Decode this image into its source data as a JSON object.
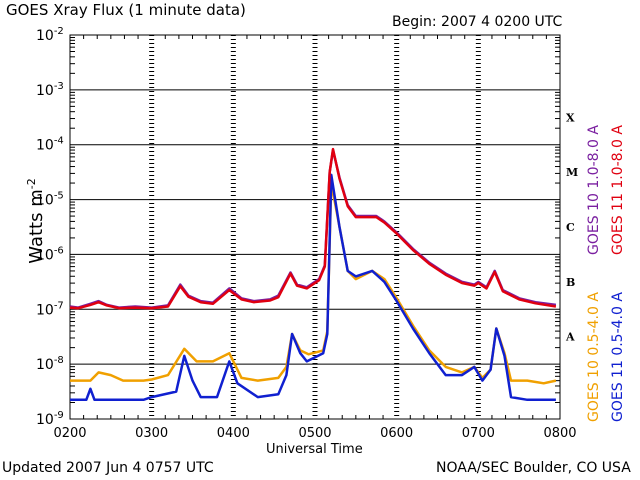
{
  "header": {
    "title": "GOES Xray Flux (1 minute data)",
    "begin": "Begin: 2007  4 0200 UTC"
  },
  "footer": {
    "updated": "Updated 2007 Jun  4 0757 UTC",
    "credit": "NOAA/SEC Boulder, CO USA"
  },
  "colors": {
    "goes10_long": "#7a1fa0",
    "goes11_long": "#e00010",
    "goes10_short": "#f0a000",
    "goes11_short": "#1020d0"
  },
  "chart_data": {
    "type": "line",
    "xlabel": "Universal Time",
    "ylabel_text": "Watts m",
    "ylabel_sup": "-2",
    "x_ticks": [
      "0200",
      "0300",
      "0400",
      "0500",
      "0600",
      "0700",
      "0800"
    ],
    "xlim": [
      2.0,
      8.0
    ],
    "ylim_exp": [
      -9,
      -2
    ],
    "y_scale": "log",
    "y_ticks": [
      {
        "exp": -2,
        "base": "10",
        "sup": "-2"
      },
      {
        "exp": -3,
        "base": "10",
        "sup": "-3"
      },
      {
        "exp": -4,
        "base": "10",
        "sup": "-4"
      },
      {
        "exp": -5,
        "base": "10",
        "sup": "-5"
      },
      {
        "exp": -6,
        "base": "10",
        "sup": "-6"
      },
      {
        "exp": -7,
        "base": "10",
        "sup": "-7"
      },
      {
        "exp": -8,
        "base": "10",
        "sup": "-8"
      },
      {
        "exp": -9,
        "base": "10",
        "sup": "-9"
      }
    ],
    "flare_classes": [
      {
        "label": "X",
        "exp": -3.5
      },
      {
        "label": "M",
        "exp": -4.5
      },
      {
        "label": "C",
        "exp": -5.5
      },
      {
        "label": "B",
        "exp": -6.5
      },
      {
        "label": "A",
        "exp": -7.5
      }
    ],
    "series": [
      {
        "name": "GOES 10 1.0-8.0 A",
        "color_key": "goes10_long",
        "points": [
          [
            2.0,
            -6.95
          ],
          [
            2.1,
            -6.97
          ],
          [
            2.25,
            -6.9
          ],
          [
            2.35,
            -6.85
          ],
          [
            2.45,
            -6.92
          ],
          [
            2.6,
            -6.97
          ],
          [
            2.8,
            -6.95
          ],
          [
            3.0,
            -6.97
          ],
          [
            3.2,
            -6.93
          ],
          [
            3.35,
            -6.55
          ],
          [
            3.45,
            -6.75
          ],
          [
            3.6,
            -6.85
          ],
          [
            3.75,
            -6.88
          ],
          [
            3.95,
            -6.62
          ],
          [
            4.1,
            -6.8
          ],
          [
            4.25,
            -6.85
          ],
          [
            4.45,
            -6.82
          ],
          [
            4.55,
            -6.75
          ],
          [
            4.7,
            -6.33
          ],
          [
            4.78,
            -6.55
          ],
          [
            4.9,
            -6.6
          ],
          [
            5.05,
            -6.45
          ],
          [
            5.12,
            -6.2
          ],
          [
            5.18,
            -4.5
          ],
          [
            5.22,
            -4.1
          ],
          [
            5.3,
            -4.6
          ],
          [
            5.4,
            -5.1
          ],
          [
            5.5,
            -5.3
          ],
          [
            5.6,
            -5.3
          ],
          [
            5.75,
            -5.3
          ],
          [
            5.85,
            -5.4
          ],
          [
            6.0,
            -5.6
          ],
          [
            6.2,
            -5.9
          ],
          [
            6.4,
            -6.15
          ],
          [
            6.6,
            -6.35
          ],
          [
            6.8,
            -6.5
          ],
          [
            6.95,
            -6.55
          ],
          [
            7.0,
            -6.5
          ],
          [
            7.1,
            -6.6
          ],
          [
            7.2,
            -6.3
          ],
          [
            7.3,
            -6.65
          ],
          [
            7.5,
            -6.8
          ],
          [
            7.7,
            -6.87
          ],
          [
            7.95,
            -6.92
          ]
        ]
      },
      {
        "name": "GOES 11 1.0-8.0 A",
        "color_key": "goes11_long",
        "points": [
          [
            2.0,
            -6.97
          ],
          [
            2.1,
            -6.98
          ],
          [
            2.25,
            -6.92
          ],
          [
            2.35,
            -6.87
          ],
          [
            2.45,
            -6.93
          ],
          [
            2.6,
            -6.98
          ],
          [
            2.8,
            -6.97
          ],
          [
            3.0,
            -6.98
          ],
          [
            3.2,
            -6.95
          ],
          [
            3.35,
            -6.58
          ],
          [
            3.45,
            -6.77
          ],
          [
            3.6,
            -6.87
          ],
          [
            3.75,
            -6.9
          ],
          [
            3.95,
            -6.65
          ],
          [
            4.1,
            -6.82
          ],
          [
            4.25,
            -6.87
          ],
          [
            4.45,
            -6.84
          ],
          [
            4.55,
            -6.78
          ],
          [
            4.7,
            -6.35
          ],
          [
            4.78,
            -6.57
          ],
          [
            4.9,
            -6.62
          ],
          [
            5.05,
            -6.47
          ],
          [
            5.12,
            -6.22
          ],
          [
            5.18,
            -4.5
          ],
          [
            5.22,
            -4.08
          ],
          [
            5.3,
            -4.62
          ],
          [
            5.4,
            -5.12
          ],
          [
            5.5,
            -5.32
          ],
          [
            5.6,
            -5.32
          ],
          [
            5.75,
            -5.32
          ],
          [
            5.85,
            -5.42
          ],
          [
            6.0,
            -5.62
          ],
          [
            6.2,
            -5.92
          ],
          [
            6.4,
            -6.17
          ],
          [
            6.6,
            -6.37
          ],
          [
            6.8,
            -6.52
          ],
          [
            6.95,
            -6.57
          ],
          [
            7.0,
            -6.52
          ],
          [
            7.1,
            -6.62
          ],
          [
            7.2,
            -6.32
          ],
          [
            7.3,
            -6.67
          ],
          [
            7.5,
            -6.82
          ],
          [
            7.7,
            -6.89
          ],
          [
            7.95,
            -6.95
          ]
        ]
      },
      {
        "name": "GOES 10 0.5-4.0 A",
        "color_key": "goes10_short",
        "points": [
          [
            2.0,
            -8.3
          ],
          [
            2.25,
            -8.3
          ],
          [
            2.35,
            -8.15
          ],
          [
            2.5,
            -8.2
          ],
          [
            2.65,
            -8.3
          ],
          [
            2.9,
            -8.3
          ],
          [
            3.0,
            -8.28
          ],
          [
            3.2,
            -8.2
          ],
          [
            3.4,
            -7.72
          ],
          [
            3.55,
            -7.95
          ],
          [
            3.75,
            -7.95
          ],
          [
            3.95,
            -7.8
          ],
          [
            4.1,
            -8.25
          ],
          [
            4.3,
            -8.3
          ],
          [
            4.55,
            -8.25
          ],
          [
            4.65,
            -8.05
          ],
          [
            4.72,
            -7.45
          ],
          [
            4.82,
            -7.75
          ],
          [
            4.92,
            -7.82
          ],
          [
            5.1,
            -7.75
          ],
          [
            5.15,
            -7.4
          ],
          [
            5.2,
            -4.7
          ],
          [
            5.3,
            -5.5
          ],
          [
            5.4,
            -6.3
          ],
          [
            5.5,
            -6.45
          ],
          [
            5.7,
            -6.3
          ],
          [
            5.85,
            -6.45
          ],
          [
            6.0,
            -6.8
          ],
          [
            6.2,
            -7.3
          ],
          [
            6.4,
            -7.75
          ],
          [
            6.6,
            -8.05
          ],
          [
            6.8,
            -8.15
          ],
          [
            6.95,
            -8.05
          ],
          [
            7.05,
            -8.25
          ],
          [
            7.15,
            -8.1
          ],
          [
            7.22,
            -7.35
          ],
          [
            7.32,
            -7.8
          ],
          [
            7.4,
            -8.3
          ],
          [
            7.6,
            -8.3
          ],
          [
            7.8,
            -8.35
          ],
          [
            7.95,
            -8.3
          ]
        ]
      },
      {
        "name": "GOES 11 0.5-4.0 A",
        "color_key": "goes11_short",
        "points": [
          [
            2.0,
            -8.65
          ],
          [
            2.2,
            -8.65
          ],
          [
            2.25,
            -8.45
          ],
          [
            2.3,
            -8.65
          ],
          [
            2.6,
            -8.65
          ],
          [
            2.9,
            -8.65
          ],
          [
            3.0,
            -8.6
          ],
          [
            3.3,
            -8.5
          ],
          [
            3.4,
            -7.85
          ],
          [
            3.5,
            -8.3
          ],
          [
            3.6,
            -8.6
          ],
          [
            3.8,
            -8.6
          ],
          [
            3.95,
            -7.95
          ],
          [
            4.05,
            -8.35
          ],
          [
            4.3,
            -8.6
          ],
          [
            4.55,
            -8.55
          ],
          [
            4.65,
            -8.2
          ],
          [
            4.72,
            -7.45
          ],
          [
            4.82,
            -7.8
          ],
          [
            4.9,
            -7.95
          ],
          [
            5.1,
            -7.8
          ],
          [
            5.15,
            -7.45
          ],
          [
            5.2,
            -4.55
          ],
          [
            5.3,
            -5.5
          ],
          [
            5.4,
            -6.3
          ],
          [
            5.5,
            -6.4
          ],
          [
            5.7,
            -6.3
          ],
          [
            5.85,
            -6.5
          ],
          [
            6.0,
            -6.85
          ],
          [
            6.2,
            -7.35
          ],
          [
            6.4,
            -7.8
          ],
          [
            6.6,
            -8.2
          ],
          [
            6.8,
            -8.2
          ],
          [
            6.95,
            -8.05
          ],
          [
            7.05,
            -8.3
          ],
          [
            7.15,
            -8.1
          ],
          [
            7.22,
            -7.35
          ],
          [
            7.32,
            -7.85
          ],
          [
            7.4,
            -8.6
          ],
          [
            7.6,
            -8.65
          ],
          [
            7.8,
            -8.65
          ],
          [
            7.95,
            -8.65
          ]
        ]
      }
    ]
  }
}
